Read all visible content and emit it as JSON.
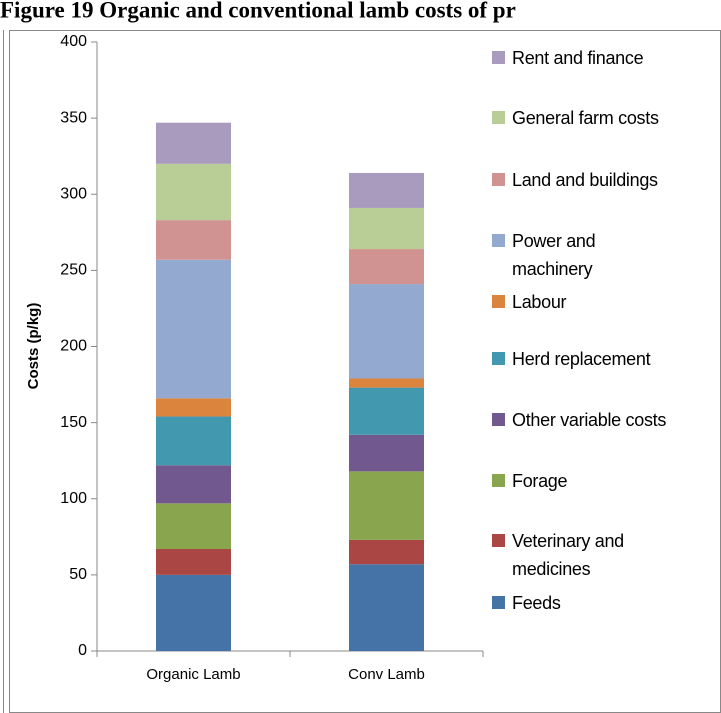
{
  "chart_data": {
    "type": "stacked-bar",
    "title": "Figure 19 Organic and conventional lamb costs of pr",
    "y_label": "Costs (p/kg)",
    "categories": [
      "Organic Lamb",
      "Conv Lamb"
    ],
    "series": [
      {
        "name": "Feeds",
        "color": "#4572a7",
        "values": [
          50,
          57
        ]
      },
      {
        "name": "Veterinary and medicines",
        "color": "#aa4643",
        "values": [
          17,
          16
        ]
      },
      {
        "name": "Forage",
        "color": "#89a54e",
        "values": [
          30,
          45
        ]
      },
      {
        "name": "Other variable costs",
        "color": "#71588f",
        "values": [
          25,
          24
        ]
      },
      {
        "name": "Herd replacement",
        "color": "#4198af",
        "values": [
          32,
          31
        ]
      },
      {
        "name": "Labour",
        "color": "#db843d",
        "values": [
          12,
          6
        ]
      },
      {
        "name": "Power and machinery",
        "color": "#93a9cf",
        "values": [
          91,
          62
        ]
      },
      {
        "name": "Land and buildings",
        "color": "#d19392",
        "values": [
          26,
          23
        ]
      },
      {
        "name": "General farm costs",
        "color": "#b9cd96",
        "values": [
          37,
          27
        ]
      },
      {
        "name": "Rent and finance",
        "color": "#a99bbd",
        "values": [
          27,
          23
        ]
      }
    ],
    "ylim": [
      0,
      400
    ],
    "yticks": [
      0,
      50,
      100,
      150,
      200,
      250,
      300,
      350,
      400
    ],
    "grid": false,
    "legend": "right"
  }
}
